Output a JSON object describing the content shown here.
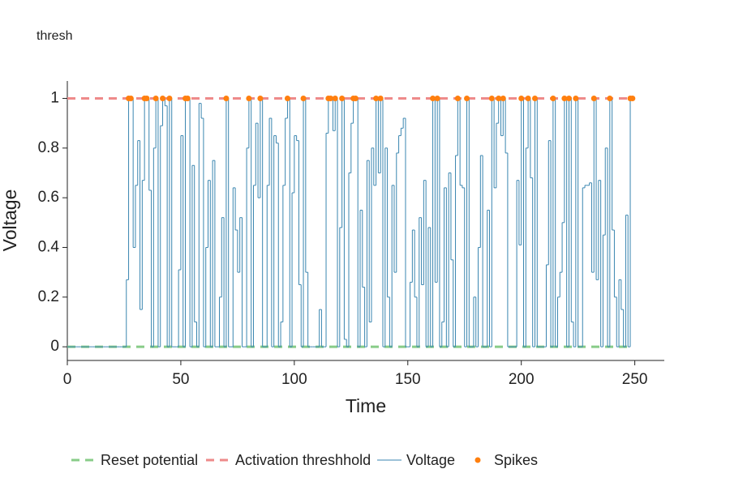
{
  "chart_data": {
    "type": "step",
    "title": "thresh",
    "x_label": "Time",
    "y_label": "Voltage",
    "xlim": [
      0,
      263
    ],
    "xticks": [
      0,
      50,
      100,
      150,
      200,
      250
    ],
    "ylim": [
      -0.055,
      1.07
    ],
    "yticks": [
      0,
      0.2,
      0.4,
      0.6,
      0.8,
      1
    ],
    "series": [
      {
        "name": "Reset potential",
        "color": "#88cc88",
        "style": "dashed",
        "x": [
          0,
          249
        ],
        "values": [
          0,
          0
        ]
      },
      {
        "name": "Activation threshhold",
        "color": "#ee8a8a",
        "style": "dashed",
        "x": [
          0,
          249
        ],
        "values": [
          1,
          1
        ]
      },
      {
        "name": "Voltage",
        "color": "#3a86b0",
        "style": "step",
        "x": [
          0,
          1,
          2,
          3,
          4,
          5,
          6,
          7,
          8,
          9,
          10,
          11,
          12,
          13,
          14,
          15,
          16,
          17,
          18,
          19,
          20,
          21,
          22,
          23,
          24,
          25,
          26,
          27,
          28,
          29,
          30,
          31,
          32,
          33,
          34,
          35,
          36,
          37,
          38,
          39,
          40,
          41,
          42,
          43,
          44,
          45,
          46,
          47,
          48,
          49,
          50,
          51,
          52,
          53,
          54,
          55,
          56,
          57,
          58,
          59,
          60,
          61,
          62,
          63,
          64,
          65,
          66,
          67,
          68,
          69,
          70,
          71,
          72,
          73,
          74,
          75,
          76,
          77,
          78,
          79,
          80,
          81,
          82,
          83,
          84,
          85,
          86,
          87,
          88,
          89,
          90,
          91,
          92,
          93,
          94,
          95,
          96,
          97,
          98,
          99,
          100,
          101,
          102,
          103,
          104,
          105,
          106,
          107,
          108,
          109,
          110,
          111,
          112,
          113,
          114,
          115,
          116,
          117,
          118,
          119,
          120,
          121,
          122,
          123,
          124,
          125,
          126,
          127,
          128,
          129,
          130,
          131,
          132,
          133,
          134,
          135,
          136,
          137,
          138,
          139,
          140,
          141,
          142,
          143,
          144,
          145,
          146,
          147,
          148,
          149,
          150,
          151,
          152,
          153,
          154,
          155,
          156,
          157,
          158,
          159,
          160,
          161,
          162,
          163,
          164,
          165,
          166,
          167,
          168,
          169,
          170,
          171,
          172,
          173,
          174,
          175,
          176,
          177,
          178,
          179,
          180,
          181,
          182,
          183,
          184,
          185,
          186,
          187,
          188,
          189,
          190,
          191,
          192,
          193,
          194,
          195,
          196,
          197,
          198,
          199,
          200,
          201,
          202,
          203,
          204,
          205,
          206,
          207,
          208,
          209,
          210,
          211,
          212,
          213,
          214,
          215,
          216,
          217,
          218,
          219,
          220,
          221,
          222,
          223,
          224,
          225,
          226,
          227,
          228,
          229,
          230,
          231,
          232,
          233,
          234,
          235,
          236,
          237,
          238,
          239,
          240,
          241,
          242,
          243,
          244,
          245,
          246,
          247,
          248,
          249
        ],
        "values": [
          0,
          0,
          0,
          0,
          0,
          0,
          0,
          0,
          0,
          0,
          0,
          0,
          0,
          0,
          0,
          0,
          0,
          0,
          0,
          0,
          0,
          0,
          0,
          0,
          0,
          0,
          0.27,
          1,
          1,
          0.4,
          0.65,
          0.83,
          0.15,
          0.67,
          1,
          1,
          0.63,
          0,
          0.8,
          1,
          0,
          0.89,
          1,
          0.97,
          0,
          1,
          0,
          0,
          0,
          0.31,
          0.85,
          0,
          1,
          1,
          0,
          0.73,
          0.1,
          0,
          0.98,
          0.92,
          0,
          0.4,
          0.67,
          0,
          0.75,
          0,
          0,
          0.2,
          0.52,
          0,
          1,
          0,
          0,
          0.64,
          0.47,
          0.3,
          0.52,
          0,
          0,
          0.8,
          1,
          0,
          0.65,
          0.9,
          0.6,
          1,
          0,
          0,
          0.65,
          0.92,
          0,
          0.85,
          0.82,
          0,
          0.1,
          0.65,
          0.92,
          1,
          0,
          0.62,
          0.85,
          0.83,
          0.25,
          0,
          1,
          0.3,
          0,
          0,
          0,
          0,
          0,
          0.15,
          0,
          0,
          0.86,
          1,
          1,
          0.87,
          1,
          0,
          0.48,
          1,
          0.03,
          0,
          0.7,
          0.9,
          1,
          1,
          0,
          0.55,
          0.24,
          0,
          0.75,
          0.1,
          0.8,
          0.65,
          1,
          0.7,
          1,
          0,
          0.8,
          0.2,
          0,
          0.65,
          0.3,
          0.78,
          0.85,
          0.88,
          0.92,
          0,
          0,
          0.26,
          0.47,
          0.2,
          0,
          0.52,
          0.25,
          0.67,
          0,
          0.48,
          0,
          1,
          0.26,
          1,
          0,
          0.1,
          0.64,
          0,
          0.7,
          0.35,
          0,
          0.77,
          1,
          0.65,
          0.64,
          0,
          1,
          0,
          0,
          0.2,
          0,
          0.4,
          0.77,
          0,
          0,
          0.55,
          0,
          1,
          0.64,
          0.9,
          1,
          0.85,
          1,
          0.78,
          0,
          0,
          0,
          0,
          0.67,
          0.41,
          1,
          0,
          0.8,
          1,
          0.68,
          0,
          1,
          0,
          0,
          0,
          0,
          0.33,
          0.83,
          0,
          1,
          0,
          0.2,
          0.3,
          0.5,
          1,
          0,
          1,
          0.1,
          0,
          1,
          0,
          0,
          0.64,
          0.65,
          0.65,
          0.66,
          0.3,
          1,
          0.27,
          0.67,
          0,
          0.45,
          0.8,
          0,
          1,
          0.47,
          0.2,
          0,
          0.27,
          0.15,
          0,
          0.53,
          0,
          1,
          1
        ]
      },
      {
        "name": "Spikes",
        "color": "#ff7f0e",
        "style": "points",
        "x": [
          27,
          28,
          34,
          35,
          39,
          42,
          45,
          52,
          53,
          70,
          80,
          85,
          97,
          104,
          115,
          116,
          118,
          121,
          126,
          127,
          136,
          138,
          161,
          163,
          172,
          176,
          187,
          190,
          192,
          200,
          203,
          206,
          214,
          219,
          221,
          224,
          232,
          239,
          248,
          249
        ],
        "values": [
          1,
          1,
          1,
          1,
          1,
          1,
          1,
          1,
          1,
          1,
          1,
          1,
          1,
          1,
          1,
          1,
          1,
          1,
          1,
          1,
          1,
          1,
          1,
          1,
          1,
          1,
          1,
          1,
          1,
          1,
          1,
          1,
          1,
          1,
          1,
          1,
          1,
          1,
          1,
          1
        ]
      }
    ]
  }
}
